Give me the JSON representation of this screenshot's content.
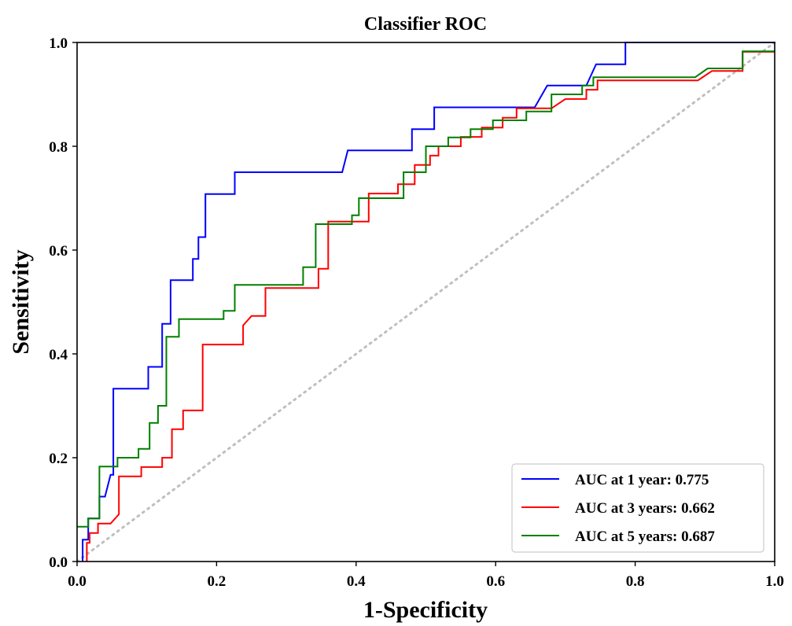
{
  "chart_data": {
    "type": "line",
    "title": "Classifier ROC",
    "xlabel": "1-Specificity",
    "ylabel": "Sensitivity",
    "xlim": [
      0.0,
      1.0
    ],
    "ylim": [
      0.0,
      1.0
    ],
    "xticks": [
      "0.0",
      "0.2",
      "0.4",
      "0.6",
      "0.8",
      "1.0"
    ],
    "yticks": [
      "0.0",
      "0.2",
      "0.4",
      "0.6",
      "0.8",
      "1.0"
    ],
    "grid": false,
    "legend_position": "lower-right",
    "reference_line": {
      "style": "dotted",
      "color": "#bfbfbf",
      "x": [
        0.0,
        1.0
      ],
      "y": [
        0.0,
        1.0
      ]
    },
    "series": [
      {
        "name": "AUC at 1 year: 0.775",
        "color": "#0000ff",
        "x": [
          0.008,
          0.008,
          0.016,
          0.016,
          0.024,
          0.024,
          0.032,
          0.032,
          0.04,
          0.04,
          0.048,
          0.052,
          0.052,
          0.102,
          0.102,
          0.122,
          0.122,
          0.134,
          0.134,
          0.166,
          0.166,
          0.174,
          0.174,
          0.184,
          0.184,
          0.226,
          0.226,
          0.38,
          0.388,
          0.388,
          0.48,
          0.48,
          0.512,
          0.512,
          0.656,
          0.674,
          0.674,
          0.73,
          0.744,
          0.744,
          0.786,
          0.786,
          1.0
        ],
        "y": [
          0.0,
          0.042,
          0.042,
          0.083,
          0.083,
          0.083,
          0.083,
          0.125,
          0.125,
          0.125,
          0.167,
          0.167,
          0.333,
          0.333,
          0.375,
          0.375,
          0.458,
          0.458,
          0.542,
          0.542,
          0.583,
          0.583,
          0.625,
          0.625,
          0.708,
          0.708,
          0.75,
          0.75,
          0.792,
          0.792,
          0.792,
          0.833,
          0.833,
          0.875,
          0.875,
          0.917,
          0.917,
          0.917,
          0.958,
          0.958,
          0.958,
          1.0,
          1.0
        ]
      },
      {
        "name": "AUC at 3 years: 0.662",
        "color": "#ff0000",
        "x": [
          0.014,
          0.014,
          0.018,
          0.018,
          0.03,
          0.03,
          0.048,
          0.06,
          0.06,
          0.092,
          0.092,
          0.122,
          0.122,
          0.136,
          0.136,
          0.152,
          0.152,
          0.18,
          0.18,
          0.238,
          0.238,
          0.25,
          0.25,
          0.27,
          0.27,
          0.346,
          0.346,
          0.36,
          0.36,
          0.404,
          0.404,
          0.418,
          0.418,
          0.46,
          0.46,
          0.484,
          0.484,
          0.506,
          0.506,
          0.518,
          0.518,
          0.55,
          0.55,
          0.58,
          0.58,
          0.61,
          0.61,
          0.63,
          0.63,
          0.66,
          0.68,
          0.7,
          0.7,
          0.73,
          0.73,
          0.746,
          0.746,
          0.89,
          0.91,
          0.954,
          0.954,
          1.0
        ],
        "y": [
          0.0,
          0.036,
          0.036,
          0.055,
          0.055,
          0.073,
          0.073,
          0.091,
          0.164,
          0.164,
          0.182,
          0.182,
          0.2,
          0.2,
          0.255,
          0.255,
          0.291,
          0.291,
          0.418,
          0.418,
          0.455,
          0.473,
          0.473,
          0.473,
          0.527,
          0.527,
          0.564,
          0.564,
          0.655,
          0.655,
          0.655,
          0.655,
          0.709,
          0.709,
          0.727,
          0.727,
          0.764,
          0.764,
          0.782,
          0.782,
          0.8,
          0.8,
          0.818,
          0.818,
          0.836,
          0.836,
          0.855,
          0.855,
          0.873,
          0.873,
          0.873,
          0.891,
          0.891,
          0.891,
          0.909,
          0.909,
          0.927,
          0.927,
          0.945,
          0.945,
          0.982,
          0.982
        ]
      },
      {
        "name": "AUC at 5 years: 0.687",
        "color": "#008000",
        "x": [
          0.0,
          0.016,
          0.016,
          0.032,
          0.032,
          0.058,
          0.058,
          0.088,
          0.088,
          0.104,
          0.104,
          0.116,
          0.116,
          0.128,
          0.128,
          0.146,
          0.146,
          0.21,
          0.21,
          0.226,
          0.226,
          0.242,
          0.242,
          0.324,
          0.324,
          0.342,
          0.342,
          0.394,
          0.394,
          0.404,
          0.404,
          0.468,
          0.468,
          0.5,
          0.5,
          0.532,
          0.532,
          0.564,
          0.564,
          0.596,
          0.596,
          0.644,
          0.644,
          0.68,
          0.68,
          0.71,
          0.71,
          0.724,
          0.724,
          0.74,
          0.74,
          0.886,
          0.904,
          0.954,
          0.954,
          1.0
        ],
        "y": [
          0.067,
          0.067,
          0.083,
          0.083,
          0.183,
          0.183,
          0.2,
          0.2,
          0.217,
          0.217,
          0.267,
          0.267,
          0.3,
          0.3,
          0.433,
          0.433,
          0.467,
          0.467,
          0.483,
          0.483,
          0.533,
          0.533,
          0.533,
          0.533,
          0.567,
          0.567,
          0.65,
          0.65,
          0.667,
          0.667,
          0.7,
          0.7,
          0.75,
          0.75,
          0.8,
          0.8,
          0.817,
          0.817,
          0.833,
          0.833,
          0.85,
          0.85,
          0.867,
          0.867,
          0.9,
          0.9,
          0.9,
          0.9,
          0.917,
          0.917,
          0.933,
          0.933,
          0.95,
          0.95,
          0.983,
          0.983
        ]
      }
    ]
  }
}
